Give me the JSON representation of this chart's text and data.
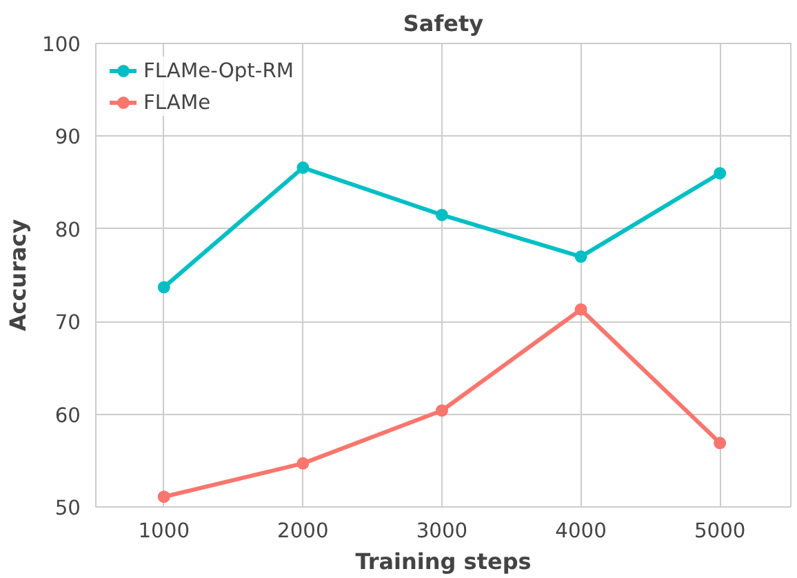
{
  "chart_data": {
    "type": "line",
    "title": "Safety",
    "xlabel": "Training steps",
    "ylabel": "Accuracy",
    "x": [
      1000,
      2000,
      3000,
      4000,
      5000
    ],
    "series": [
      {
        "name": "FLAMe-Opt-RM",
        "color": "#00bfc4",
        "values": [
          73.7,
          86.6,
          81.5,
          77.0,
          86.0
        ]
      },
      {
        "name": "FLAMe",
        "color": "#f8766d",
        "values": [
          51.1,
          54.7,
          60.4,
          71.3,
          56.9
        ]
      }
    ],
    "xlim": [
      510,
      5510
    ],
    "ylim": [
      50,
      100
    ],
    "xticks": [
      1000,
      2000,
      3000,
      4000,
      5000
    ],
    "yticks": [
      50,
      60,
      70,
      80,
      90,
      100
    ],
    "grid": true,
    "legend": "top left",
    "marker": "circle",
    "line_style": "solid"
  }
}
